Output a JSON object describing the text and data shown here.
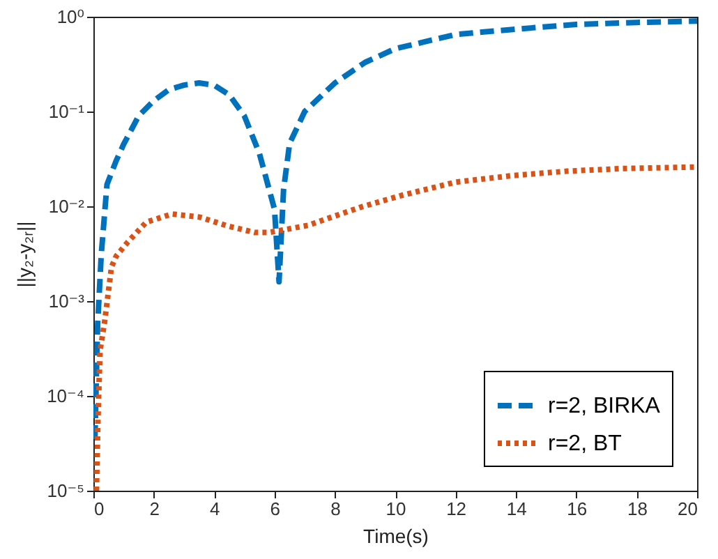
{
  "chart_data": {
    "type": "line",
    "xlabel": "Time(s)",
    "ylabel": "||y₂-y₂ᵣ||",
    "log": "y",
    "xlim": [
      0,
      20
    ],
    "xticks": [
      0,
      2,
      4,
      6,
      8,
      10,
      12,
      14,
      16,
      18,
      20
    ],
    "ylim": [
      1e-05,
      1
    ],
    "yticks": [
      {
        "value": 1e-05,
        "label": "10⁻⁵"
      },
      {
        "value": 0.0001,
        "label": "10⁻⁴"
      },
      {
        "value": 0.001,
        "label": "10⁻³"
      },
      {
        "value": 0.01,
        "label": "10⁻²"
      },
      {
        "value": 0.1,
        "label": "10⁻¹"
      },
      {
        "value": 1,
        "label": "10⁰"
      }
    ],
    "grid": false,
    "legend": "bottom right",
    "marker": "none",
    "series": [
      {
        "name": "r=2, BIRKA",
        "color": "#0072bd",
        "line_style": "dashed",
        "x": [
          0.05,
          0.08,
          0.14,
          0.26,
          0.45,
          0.75,
          1,
          1.5,
          2,
          2.5,
          3,
          3.5,
          4,
          4.5,
          5,
          5.5,
          6,
          6.15,
          6.3,
          6.5,
          7,
          8,
          9,
          10,
          12,
          14,
          16,
          18,
          20
        ],
        "values": [
          3.5e-05,
          9e-05,
          0.00056,
          0.0031,
          0.017,
          0.03,
          0.045,
          0.09,
          0.13,
          0.17,
          0.19,
          0.2,
          0.19,
          0.15,
          0.09,
          0.036,
          0.0093,
          0.0016,
          0.015,
          0.046,
          0.1,
          0.2,
          0.33,
          0.46,
          0.65,
          0.74,
          0.83,
          0.87,
          0.9
        ]
      },
      {
        "name": "r=2, BT",
        "color": "#d95319",
        "line_style": "dotted",
        "x": [
          0.1,
          0.15,
          0.22,
          0.37,
          0.6,
          0.76,
          1.14,
          1.75,
          2.6,
          3.52,
          4.45,
          5.34,
          5.8,
          6.25,
          7.11,
          8,
          8.9,
          10.2,
          12,
          13.84,
          15.7,
          17.5,
          20
        ],
        "values": [
          1e-05,
          5.5e-05,
          0.0003,
          0.0006,
          0.0023,
          0.003,
          0.0042,
          0.0068,
          0.0083,
          0.0077,
          0.0062,
          0.0053,
          0.0053,
          0.0056,
          0.0063,
          0.0079,
          0.0099,
          0.013,
          0.018,
          0.021,
          0.0235,
          0.025,
          0.026
        ]
      }
    ]
  }
}
